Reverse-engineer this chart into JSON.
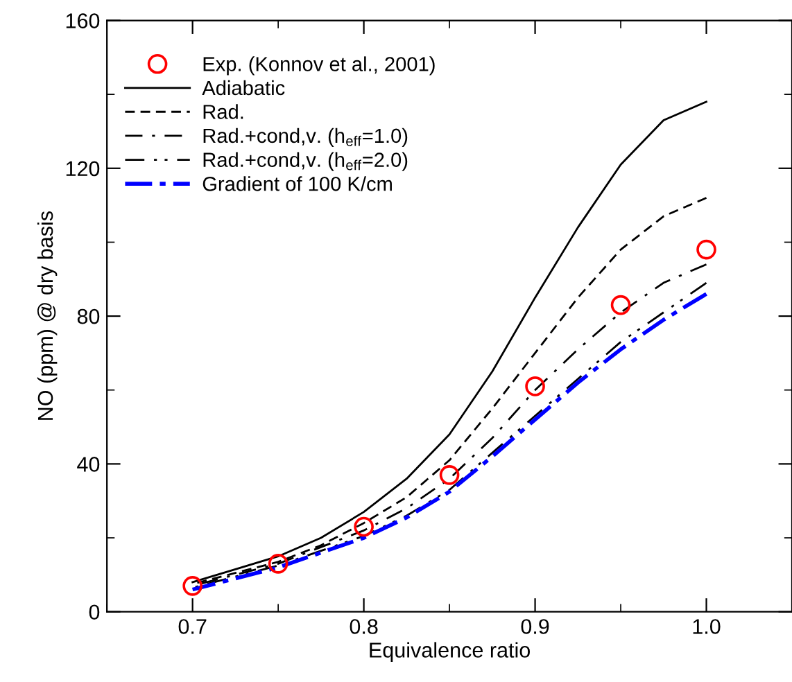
{
  "chart_data": {
    "type": "line",
    "xlabel": "Equivalence ratio",
    "ylabel": "NO (ppm) @ dry basis",
    "xlim": [
      0.65,
      1.05
    ],
    "xticks": [
      0.7,
      0.8,
      0.9,
      {
        "value": 1,
        "label": "1.0"
      }
    ],
    "ylim": [
      0,
      160
    ],
    "yticks": [
      0,
      40,
      80,
      120,
      160
    ],
    "grid": false,
    "legend": "top left",
    "series": [
      {
        "name": "Exp. (Konnov et al., 2001)",
        "type": "scatter",
        "marker": "circle",
        "color": "#ff0000",
        "x": [
          0.7,
          0.75,
          0.8,
          0.85,
          0.9,
          0.95,
          1.0
        ],
        "values": [
          7,
          13,
          23,
          37,
          61,
          83,
          98
        ]
      },
      {
        "name": "Adiabatic",
        "line_style": "solid",
        "color": "#000000",
        "x": [
          0.7,
          0.725,
          0.75,
          0.775,
          0.8,
          0.825,
          0.85,
          0.875,
          0.9,
          0.925,
          0.95,
          0.975,
          1.0
        ],
        "values": [
          8,
          11.5,
          15,
          20,
          27,
          36,
          48,
          65,
          85,
          104,
          121,
          133,
          138
        ]
      },
      {
        "name": "Rad.",
        "line_style": "dashed",
        "color": "#000000",
        "x": [
          0.7,
          0.725,
          0.75,
          0.775,
          0.8,
          0.825,
          0.85,
          0.875,
          0.9,
          0.925,
          0.95,
          0.975,
          1.0
        ],
        "values": [
          7.5,
          10.5,
          13.5,
          18,
          24,
          31,
          41,
          55,
          70,
          85,
          98,
          107,
          112
        ]
      },
      {
        "name": "Rad.+cond,v. (h$_{eff}$=1.0)",
        "line_style": "longdashdot",
        "color": "#000000",
        "x": [
          0.7,
          0.75,
          0.8,
          0.825,
          0.85,
          0.875,
          0.9,
          0.925,
          0.95,
          0.975,
          1.0
        ],
        "values": [
          7,
          13,
          22,
          28,
          36,
          47,
          60,
          71,
          81,
          89,
          94
        ]
      },
      {
        "name": "Rad.+cond,v. (h$_{eff}$=2.0)",
        "line_style": "dashdotdot",
        "color": "#000000",
        "x": [
          0.7,
          0.75,
          0.8,
          0.825,
          0.85,
          0.875,
          0.9,
          0.925,
          0.95,
          0.975,
          1.0
        ],
        "values": [
          6.5,
          12.5,
          20.5,
          26,
          33,
          43,
          53,
          63,
          73,
          81,
          89
        ]
      },
      {
        "name": "Gradient of 100 K/cm",
        "line_style": "dashdot",
        "color": "#0000ff",
        "x": [
          0.7,
          0.75,
          0.8,
          0.825,
          0.85,
          0.875,
          0.9,
          0.925,
          0.95,
          0.975,
          1.0
        ],
        "values": [
          6,
          12,
          20,
          25.5,
          32.5,
          42,
          52,
          62,
          71,
          79,
          86
        ]
      }
    ]
  }
}
